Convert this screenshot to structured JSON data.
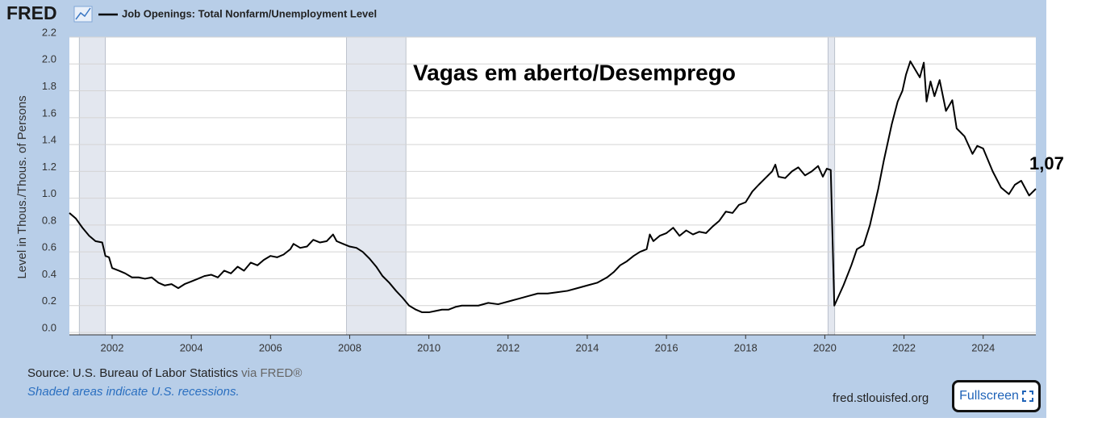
{
  "header": {
    "logo": "FRED",
    "legend_title": "Job Openings: Total Nonfarm/Unemployment Level"
  },
  "chart_data": {
    "type": "line",
    "y_label": "Level in Thous./Thous. of Persons",
    "annotations": [
      {
        "text": "Vagas em aberto/Desemprego"
      },
      {
        "text": "1,07",
        "x": 2025.33,
        "y": 1.07
      }
    ],
    "xlim": [
      2000.92,
      2025.33
    ],
    "xticks": [
      2002,
      2004,
      2006,
      2008,
      2010,
      2012,
      2014,
      2016,
      2018,
      2020,
      2022,
      2024
    ],
    "ylim": [
      0,
      2.2
    ],
    "yticks": [
      {
        "value": 0,
        "label": "0.0"
      },
      0.2,
      0.4,
      0.6,
      0.8,
      {
        "value": 1,
        "label": "1.0"
      },
      1.2,
      1.4,
      1.6,
      1.8,
      {
        "value": 2,
        "label": "2.0"
      },
      2.2
    ],
    "grid": true,
    "recessions": [
      [
        2001.17,
        2001.83
      ],
      [
        2007.92,
        2009.42
      ],
      [
        2020.08,
        2020.25
      ]
    ],
    "x": [
      2000.92,
      2001.08,
      2001.25,
      2001.42,
      2001.58,
      2001.75,
      2001.83,
      2001.92,
      2002.0,
      2002.17,
      2002.33,
      2002.5,
      2002.67,
      2002.83,
      2003.0,
      2003.17,
      2003.33,
      2003.5,
      2003.67,
      2003.83,
      2004.0,
      2004.17,
      2004.33,
      2004.5,
      2004.67,
      2004.83,
      2005.0,
      2005.17,
      2005.33,
      2005.5,
      2005.67,
      2005.83,
      2006.0,
      2006.17,
      2006.33,
      2006.5,
      2006.58,
      2006.75,
      2006.92,
      2007.08,
      2007.25,
      2007.42,
      2007.58,
      2007.67,
      2007.83,
      2008.0,
      2008.17,
      2008.33,
      2008.5,
      2008.67,
      2008.83,
      2009.0,
      2009.17,
      2009.33,
      2009.5,
      2009.67,
      2009.83,
      2010.0,
      2010.17,
      2010.33,
      2010.5,
      2010.67,
      2010.83,
      2011.0,
      2011.25,
      2011.5,
      2011.75,
      2012.0,
      2012.25,
      2012.5,
      2012.75,
      2013.0,
      2013.25,
      2013.5,
      2013.75,
      2014.0,
      2014.25,
      2014.5,
      2014.67,
      2014.83,
      2015.0,
      2015.17,
      2015.33,
      2015.5,
      2015.58,
      2015.67,
      2015.83,
      2016.0,
      2016.17,
      2016.33,
      2016.5,
      2016.67,
      2016.83,
      2017.0,
      2017.17,
      2017.33,
      2017.5,
      2017.67,
      2017.83,
      2018.0,
      2018.17,
      2018.33,
      2018.5,
      2018.67,
      2018.75,
      2018.83,
      2019.0,
      2019.17,
      2019.33,
      2019.5,
      2019.67,
      2019.83,
      2019.95,
      2020.05,
      2020.15,
      2020.24,
      2020.47,
      2020.67,
      2020.81,
      2020.98,
      2021.14,
      2021.35,
      2021.49,
      2021.69,
      2021.84,
      2021.96,
      2022.05,
      2022.16,
      2022.3,
      2022.4,
      2022.5,
      2022.57,
      2022.67,
      2022.77,
      2022.9,
      2023.06,
      2023.22,
      2023.33,
      2023.53,
      2023.73,
      2023.85,
      2024.0,
      2024.24,
      2024.45,
      2024.65,
      2024.8,
      2024.96,
      2025.16,
      2025.33
    ],
    "series": [
      {
        "name": "Job Openings: Total Nonfarm/Unemployment Level",
        "color": "#000000",
        "values": [
          0.89,
          0.85,
          0.78,
          0.72,
          0.68,
          0.67,
          0.57,
          0.56,
          0.48,
          0.46,
          0.44,
          0.41,
          0.41,
          0.4,
          0.41,
          0.37,
          0.35,
          0.36,
          0.33,
          0.36,
          0.38,
          0.4,
          0.42,
          0.43,
          0.41,
          0.46,
          0.44,
          0.49,
          0.46,
          0.52,
          0.5,
          0.54,
          0.57,
          0.56,
          0.58,
          0.62,
          0.66,
          0.63,
          0.64,
          0.69,
          0.67,
          0.68,
          0.73,
          0.68,
          0.66,
          0.64,
          0.63,
          0.6,
          0.55,
          0.49,
          0.42,
          0.37,
          0.31,
          0.26,
          0.2,
          0.17,
          0.15,
          0.15,
          0.16,
          0.17,
          0.17,
          0.19,
          0.2,
          0.2,
          0.2,
          0.22,
          0.21,
          0.23,
          0.25,
          0.27,
          0.29,
          0.29,
          0.3,
          0.31,
          0.33,
          0.35,
          0.37,
          0.41,
          0.45,
          0.5,
          0.53,
          0.57,
          0.6,
          0.62,
          0.73,
          0.68,
          0.72,
          0.74,
          0.78,
          0.72,
          0.76,
          0.73,
          0.75,
          0.74,
          0.79,
          0.83,
          0.9,
          0.89,
          0.95,
          0.97,
          1.05,
          1.1,
          1.15,
          1.2,
          1.25,
          1.16,
          1.15,
          1.2,
          1.23,
          1.17,
          1.2,
          1.24,
          1.16,
          1.22,
          1.21,
          0.2,
          0.35,
          0.5,
          0.62,
          0.65,
          0.8,
          1.07,
          1.28,
          1.55,
          1.72,
          1.8,
          1.92,
          2.02,
          1.95,
          1.9,
          2.01,
          1.72,
          1.87,
          1.76,
          1.88,
          1.65,
          1.73,
          1.52,
          1.46,
          1.33,
          1.39,
          1.37,
          1.2,
          1.08,
          1.03,
          1.1,
          1.13,
          1.02,
          1.07
        ]
      }
    ]
  },
  "footer": {
    "source": "Source: U.S. Bureau of Labor Statistics",
    "source_via": "via FRED®",
    "note": "Shaded areas indicate U.S. recessions.",
    "site": "fred.stlouisfed.org",
    "fullscreen": "Fullscreen"
  }
}
